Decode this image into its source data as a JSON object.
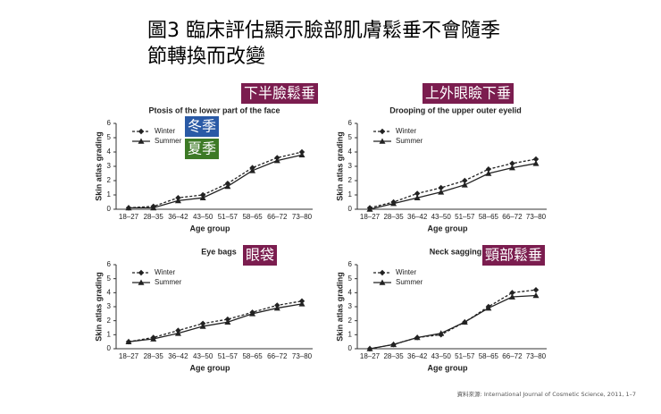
{
  "header": {
    "title": [
      "圖3 臨床評估顯示臉部肌膚鬆垂不會隨季",
      "節轉換而改變"
    ]
  },
  "source": "資料來源: International Journal of Cosmetic Science, 2011, 1–7",
  "chart_data": [
    {
      "type": "line",
      "title": "Ptosis of the lower part of the face",
      "x_label": "Age group",
      "y_label": "Skin atlas grading",
      "categories": [
        "18–27",
        "28–35",
        "36–42",
        "43–50",
        "51–57",
        "58–65",
        "66–72",
        "73–80"
      ],
      "ylim": [
        0,
        6
      ],
      "yticks": [
        0,
        1,
        2,
        3,
        4,
        5,
        6
      ],
      "series": [
        {
          "name": "Winter",
          "color": "#222222",
          "linestyle": "dashed",
          "marker": "diamond",
          "values": [
            0.1,
            0.2,
            0.8,
            1.0,
            1.8,
            2.9,
            3.6,
            4.0
          ]
        },
        {
          "name": "Summer",
          "color": "#222222",
          "linestyle": "solid",
          "marker": "triangle",
          "values": [
            0.1,
            0.1,
            0.6,
            0.8,
            1.6,
            2.7,
            3.4,
            3.8
          ]
        }
      ],
      "annotations": [
        {
          "text": "下半臉鬆垂",
          "color": "#7b1d4f"
        },
        {
          "text": "冬季",
          "color": "#2a5aa6"
        },
        {
          "text": "夏季",
          "color": "#3d7a26"
        }
      ]
    },
    {
      "type": "line",
      "title": "Drooping of the upper outer eyelid",
      "x_label": "Age group",
      "y_label": "Skin atlas grading",
      "categories": [
        "18–27",
        "28–35",
        "36–42",
        "43–50",
        "51–57",
        "58–65",
        "66–72",
        "73–80"
      ],
      "ylim": [
        0,
        6
      ],
      "yticks": [
        0,
        1,
        2,
        3,
        4,
        5,
        6
      ],
      "series": [
        {
          "name": "Winter",
          "color": "#222222",
          "linestyle": "dashed",
          "marker": "diamond",
          "values": [
            0.1,
            0.5,
            1.1,
            1.5,
            2.0,
            2.8,
            3.2,
            3.5
          ]
        },
        {
          "name": "Summer",
          "color": "#222222",
          "linestyle": "solid",
          "marker": "triangle",
          "values": [
            0.0,
            0.4,
            0.8,
            1.2,
            1.7,
            2.5,
            2.9,
            3.2
          ]
        }
      ],
      "annotations": [
        {
          "text": "上外眼瞼下垂",
          "color": "#7b1d4f"
        }
      ]
    },
    {
      "type": "line",
      "title": "Eye bags",
      "x_label": "Age group",
      "y_label": "Skin atlas grading",
      "categories": [
        "18–27",
        "28–35",
        "36–42",
        "43–50",
        "51–57",
        "58–65",
        "66–72",
        "73–80"
      ],
      "ylim": [
        0,
        6
      ],
      "yticks": [
        0,
        1,
        2,
        3,
        4,
        5,
        6
      ],
      "series": [
        {
          "name": "Winter",
          "color": "#222222",
          "linestyle": "dashed",
          "marker": "diamond",
          "values": [
            0.5,
            0.8,
            1.3,
            1.8,
            2.1,
            2.6,
            3.1,
            3.4
          ]
        },
        {
          "name": "Summer",
          "color": "#222222",
          "linestyle": "solid",
          "marker": "triangle",
          "values": [
            0.5,
            0.7,
            1.1,
            1.6,
            1.9,
            2.5,
            2.9,
            3.2
          ]
        }
      ],
      "annotations": [
        {
          "text": "眼袋",
          "color": "#7b1d4f"
        }
      ]
    },
    {
      "type": "line",
      "title": "Neck sagging",
      "x_label": "Age group",
      "y_label": "Skin atlas grading",
      "categories": [
        "18–27",
        "28–35",
        "36–42",
        "43–50",
        "51–57",
        "58–65",
        "66–72",
        "73–80"
      ],
      "ylim": [
        0,
        6
      ],
      "yticks": [
        0,
        1,
        2,
        3,
        4,
        5,
        6
      ],
      "series": [
        {
          "name": "Winter",
          "color": "#222222",
          "linestyle": "dashed",
          "marker": "diamond",
          "values": [
            0.0,
            0.3,
            0.8,
            1.0,
            1.9,
            3.0,
            4.0,
            4.2
          ]
        },
        {
          "name": "Summer",
          "color": "#222222",
          "linestyle": "solid",
          "marker": "triangle",
          "values": [
            0.0,
            0.3,
            0.8,
            1.1,
            1.9,
            2.9,
            3.7,
            3.8
          ]
        }
      ],
      "annotations": [
        {
          "text": "頸部鬆垂",
          "color": "#7b1d4f"
        }
      ]
    }
  ]
}
